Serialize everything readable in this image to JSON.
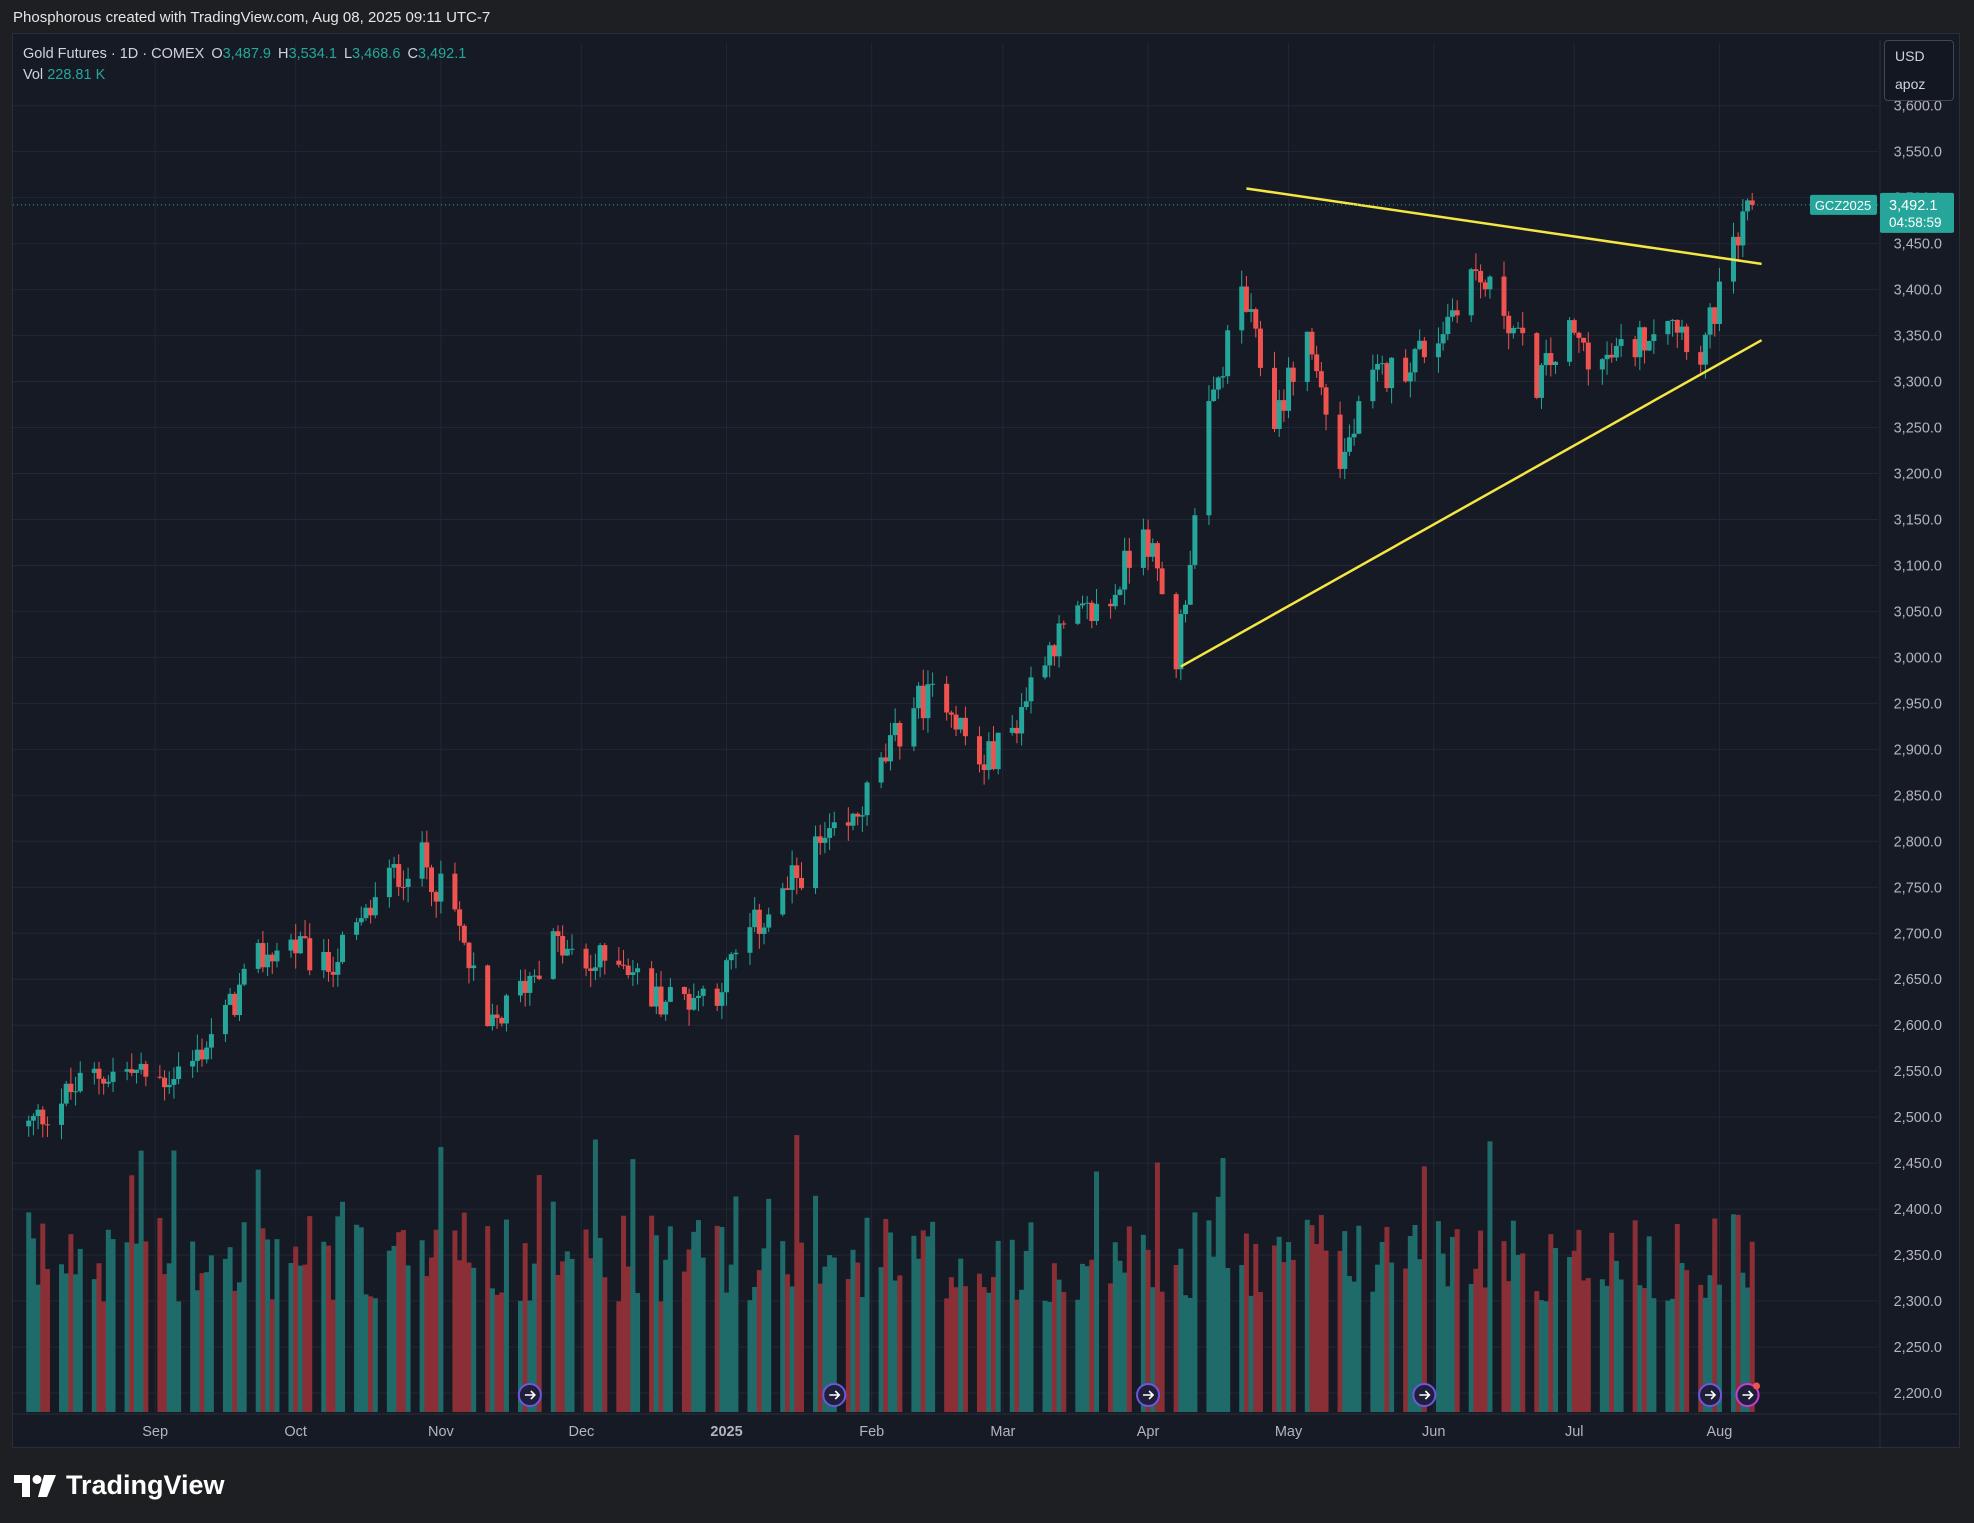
{
  "caption": "Phosphorous created with TradingView.com, Aug 08, 2025 09:11 UTC-7",
  "legend": {
    "symbol": "Gold Futures · 1D · COMEX",
    "open_label": "O",
    "open": "3,487.9",
    "high_label": "H",
    "high": "3,534.1",
    "low_label": "L",
    "low": "3,468.6",
    "close_label": "C",
    "close": "3,492.1",
    "vol_label": "Vol",
    "vol": "228.81 K"
  },
  "currency_box": {
    "currency": "USD",
    "unit": "apoz"
  },
  "price_badge": {
    "ticker": "GCZ2025",
    "price": "3,492.1",
    "countdown": "04:58:59"
  },
  "brand": "TradingView",
  "colors": {
    "up": "#26a69a",
    "down": "#ef5350",
    "vol_up": "#1e6b6a",
    "vol_down": "#8b2f36",
    "trendline": "#f5e642",
    "background": "#161a25",
    "grid": "#232734"
  },
  "chart_data": {
    "type": "candlestick",
    "y_ticks": [
      "2,200.0",
      "2,250.0",
      "2,300.0",
      "2,350.0",
      "2,400.0",
      "2,450.0",
      "2,500.0",
      "2,550.0",
      "2,600.0",
      "2,650.0",
      "2,700.0",
      "2,750.0",
      "2,800.0",
      "2,850.0",
      "2,900.0",
      "2,950.0",
      "3,000.0",
      "3,050.0",
      "3,100.0",
      "3,150.0",
      "3,200.0",
      "3,250.0",
      "3,300.0",
      "3,350.0",
      "3,400.0",
      "3,450.0",
      "3,500.0",
      "3,550.0",
      "3,600.0"
    ],
    "x_ticks": [
      {
        "label": "Sep",
        "date": "2024-09-01"
      },
      {
        "label": "Oct",
        "date": "2024-10-01"
      },
      {
        "label": "Nov",
        "date": "2024-11-01"
      },
      {
        "label": "Dec",
        "date": "2024-12-01"
      },
      {
        "label": "2025",
        "date": "2025-01-01",
        "bold": true
      },
      {
        "label": "Feb",
        "date": "2025-02-01"
      },
      {
        "label": "Mar",
        "date": "2025-03-01"
      },
      {
        "label": "Apr",
        "date": "2025-04-01"
      },
      {
        "label": "May",
        "date": "2025-05-01"
      },
      {
        "label": "Jun",
        "date": "2025-06-01"
      },
      {
        "label": "Jul",
        "date": "2025-07-01"
      },
      {
        "label": "Aug",
        "date": "2025-08-01"
      }
    ],
    "ylim": [
      2180,
      3610
    ],
    "last_price": 3492.1,
    "price_series": [
      [
        "2024-08-05",
        2490
      ],
      [
        "2024-08-12",
        2520
      ],
      [
        "2024-08-19",
        2545
      ],
      [
        "2024-08-26",
        2550
      ],
      [
        "2024-09-02",
        2540
      ],
      [
        "2024-09-09",
        2560
      ],
      [
        "2024-09-16",
        2610
      ],
      [
        "2024-09-23",
        2670
      ],
      [
        "2024-09-30",
        2690
      ],
      [
        "2024-10-07",
        2660
      ],
      [
        "2024-10-14",
        2700
      ],
      [
        "2024-10-21",
        2760
      ],
      [
        "2024-10-28",
        2780
      ],
      [
        "2024-11-04",
        2720
      ],
      [
        "2024-11-11",
        2590
      ],
      [
        "2024-11-18",
        2640
      ],
      [
        "2024-11-25",
        2690
      ],
      [
        "2024-12-02",
        2660
      ],
      [
        "2024-12-09",
        2680
      ],
      [
        "2024-12-16",
        2630
      ],
      [
        "2024-12-23",
        2630
      ],
      [
        "2024-12-30",
        2640
      ],
      [
        "2025-01-06",
        2700
      ],
      [
        "2025-01-13",
        2740
      ],
      [
        "2025-01-20",
        2790
      ],
      [
        "2025-01-27",
        2810
      ],
      [
        "2025-02-03",
        2880
      ],
      [
        "2025-02-10",
        2950
      ],
      [
        "2025-02-17",
        2960
      ],
      [
        "2025-02-24",
        2880
      ],
      [
        "2025-03-03",
        2920
      ],
      [
        "2025-03-10",
        3010
      ],
      [
        "2025-03-17",
        3040
      ],
      [
        "2025-03-24",
        3060
      ],
      [
        "2025-03-31",
        3150
      ],
      [
        "2025-04-07",
        3000
      ],
      [
        "2025-04-14",
        3260
      ],
      [
        "2025-04-21",
        3400
      ],
      [
        "2025-04-28",
        3260
      ],
      [
        "2025-05-05",
        3350
      ],
      [
        "2025-05-12",
        3210
      ],
      [
        "2025-05-19",
        3300
      ],
      [
        "2025-05-26",
        3320
      ],
      [
        "2025-06-02",
        3350
      ],
      [
        "2025-06-09",
        3420
      ],
      [
        "2025-06-16",
        3380
      ],
      [
        "2025-06-23",
        3300
      ],
      [
        "2025-06-30",
        3350
      ],
      [
        "2025-07-07",
        3320
      ],
      [
        "2025-07-14",
        3340
      ],
      [
        "2025-07-21",
        3380
      ],
      [
        "2025-07-28",
        3330
      ],
      [
        "2025-08-04",
        3440
      ],
      [
        "2025-08-08",
        3492.1
      ]
    ],
    "trendlines": [
      {
        "from": [
          "2025-04-22",
          3510
        ],
        "to": [
          "2025-08-10",
          3428
        ]
      },
      {
        "from": [
          "2025-04-08",
          2990
        ],
        "to": [
          "2025-08-10",
          3345
        ]
      }
    ],
    "event_markers": [
      "2024-11-20",
      "2025-01-24",
      "2025-04-01",
      "2025-05-30",
      "2025-07-30",
      "2025-08-07"
    ]
  }
}
